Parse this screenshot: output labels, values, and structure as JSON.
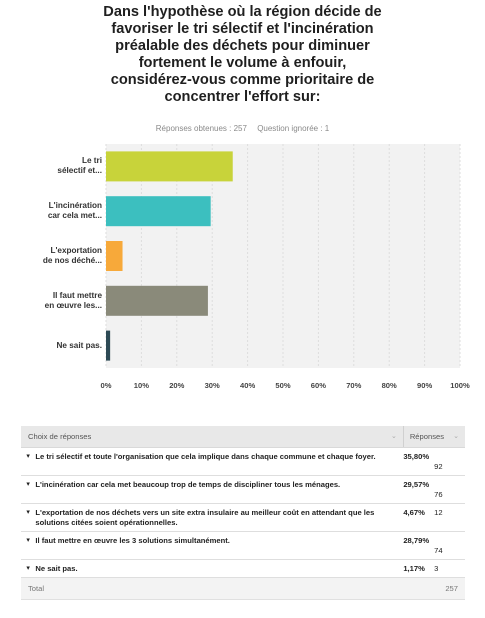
{
  "question": {
    "lines": [
      "Dans l'hypothèse où la région décide de",
      "favoriser le tri sélectif et l'incinération",
      "préalable des déchets pour diminuer",
      "fortement le volume à enfouir,",
      "considérez-vous comme prioritaire de",
      "concentrer l'effort sur:"
    ]
  },
  "meta": {
    "answered": "Réponses obtenues : 257",
    "skipped": "Question ignorée : 1"
  },
  "chart_data": {
    "type": "bar",
    "orientation": "horizontal",
    "categories": [
      [
        "Le tri",
        "sélectif et..."
      ],
      [
        "L'incinération",
        "car cela met..."
      ],
      [
        "L'exportation",
        "de nos déché..."
      ],
      [
        "Il faut mettre",
        "en œuvre les..."
      ],
      [
        "Ne sait pas."
      ]
    ],
    "values": [
      35.8,
      29.57,
      4.67,
      28.79,
      1.17
    ],
    "colors": [
      "#c8d33a",
      "#3cbfbf",
      "#f7a93a",
      "#8a8a7a",
      "#2d4a55"
    ],
    "xlim": [
      0,
      100
    ],
    "xticks": [
      "0%",
      "10%",
      "20%",
      "30%",
      "40%",
      "50%",
      "60%",
      "70%",
      "80%",
      "90%",
      "100%"
    ],
    "grid": true
  },
  "table": {
    "header_choice": "Choix de réponses",
    "header_resp": "Réponses",
    "rows": [
      {
        "choice": "Le tri sélectif et toute l'organisation que cela implique dans chaque commune et chaque foyer.",
        "pct": "35,80%",
        "count": "92"
      },
      {
        "choice": "L'incinération car cela met beaucoup trop de temps de discipliner tous les ménages.",
        "pct": "29,57%",
        "count": "76"
      },
      {
        "choice": "L'exportation de nos déchets vers un site extra insulaire au meilleur coût en attendant que les solutions citées soient opérationnelles.",
        "pct": "4,67%",
        "count": "12"
      },
      {
        "choice": "Il faut mettre en œuvre les 3 solutions simultanément.",
        "pct": "28,79%",
        "count": "74"
      },
      {
        "choice": "Ne sait pas.",
        "pct": "1,17%",
        "count": "3"
      }
    ],
    "total_label": "Total",
    "total_value": "257"
  }
}
